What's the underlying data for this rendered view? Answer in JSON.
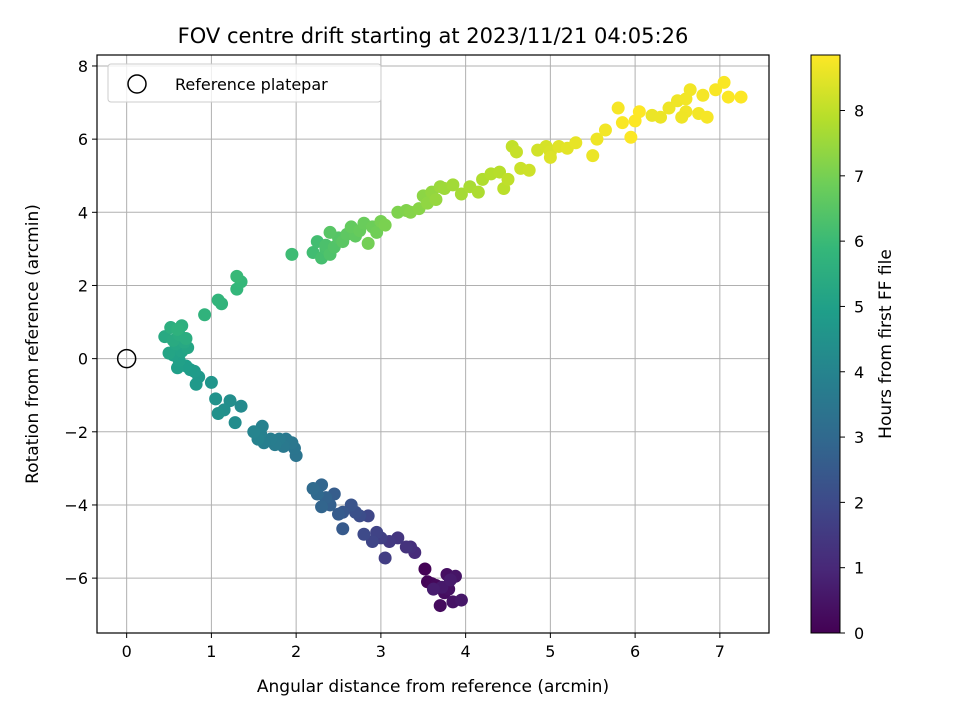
{
  "chart_data": {
    "type": "scatter",
    "title": "FOV centre drift starting at 2023/11/21 04:05:26",
    "xlabel": "Angular distance from reference (arcmin)",
    "ylabel": "Rotation from reference (arcmin)",
    "xlim": [
      -0.35,
      7.58
    ],
    "ylim": [
      -7.5,
      8.3
    ],
    "xticks": [
      0,
      1,
      2,
      3,
      4,
      5,
      6,
      7
    ],
    "yticks": [
      -6,
      -4,
      -2,
      0,
      2,
      4,
      6,
      8
    ],
    "grid": true,
    "legend": {
      "position": "top-left",
      "entries": [
        "Reference platepar"
      ]
    },
    "reference_point": {
      "x": 0,
      "y": 0
    },
    "colorbar": {
      "label": "Hours from first FF file",
      "range": [
        0,
        8.85
      ],
      "ticks": [
        0,
        1,
        2,
        3,
        4,
        5,
        6,
        7,
        8
      ],
      "colormap": "viridis"
    },
    "colormap_stops": [
      "#440154",
      "#482878",
      "#3e4989",
      "#31688e",
      "#26828e",
      "#1f9e89",
      "#35b779",
      "#6ece58",
      "#b5de2b",
      "#fde725"
    ],
    "points": [
      [
        3.52,
        -5.75,
        0.05
      ],
      [
        3.55,
        -6.1,
        0.1
      ],
      [
        3.6,
        -6.15,
        0.15
      ],
      [
        3.65,
        -6.2,
        0.2
      ],
      [
        3.7,
        -6.75,
        0.25
      ],
      [
        3.75,
        -6.4,
        0.3
      ],
      [
        3.78,
        -5.9,
        0.35
      ],
      [
        3.8,
        -6.3,
        0.4
      ],
      [
        3.85,
        -6.65,
        0.45
      ],
      [
        3.88,
        -5.95,
        0.5
      ],
      [
        3.95,
        -6.6,
        0.55
      ],
      [
        3.72,
        -6.25,
        0.6
      ],
      [
        3.82,
        -6.05,
        0.65
      ],
      [
        3.62,
        -6.3,
        0.7
      ],
      [
        3.4,
        -5.3,
        1.1
      ],
      [
        3.35,
        -5.15,
        1.2
      ],
      [
        3.3,
        -5.15,
        1.3
      ],
      [
        3.2,
        -4.9,
        1.4
      ],
      [
        3.1,
        -5.0,
        1.5
      ],
      [
        3.05,
        -5.45,
        1.6
      ],
      [
        3.0,
        -4.9,
        1.7
      ],
      [
        2.95,
        -4.75,
        1.8
      ],
      [
        2.9,
        -5.0,
        1.85
      ],
      [
        2.85,
        -4.3,
        1.9
      ],
      [
        2.8,
        -4.8,
        2.0
      ],
      [
        2.75,
        -4.3,
        2.1
      ],
      [
        2.7,
        -4.2,
        2.2
      ],
      [
        2.65,
        -4.0,
        2.3
      ],
      [
        2.55,
        -4.2,
        2.4
      ],
      [
        2.55,
        -4.65,
        2.5
      ],
      [
        2.5,
        -4.25,
        2.55
      ],
      [
        2.45,
        -3.7,
        2.6
      ],
      [
        2.4,
        -4.0,
        2.7
      ],
      [
        2.35,
        -3.8,
        2.8
      ],
      [
        2.3,
        -4.05,
        2.85
      ],
      [
        2.3,
        -3.45,
        2.9
      ],
      [
        2.25,
        -3.7,
        3.0
      ],
      [
        2.2,
        -3.55,
        3.05
      ],
      [
        2.0,
        -2.65,
        3.4
      ],
      [
        1.98,
        -2.45,
        3.45
      ],
      [
        1.95,
        -2.3,
        3.5
      ],
      [
        1.88,
        -2.2,
        3.55
      ],
      [
        1.85,
        -2.4,
        3.6
      ],
      [
        1.8,
        -2.2,
        3.65
      ],
      [
        1.75,
        -2.35,
        3.7
      ],
      [
        1.7,
        -2.2,
        3.75
      ],
      [
        1.62,
        -2.3,
        3.8
      ],
      [
        1.58,
        -2.05,
        3.85
      ],
      [
        1.6,
        -1.85,
        3.9
      ],
      [
        1.55,
        -2.2,
        3.95
      ],
      [
        1.5,
        -2.0,
        4.0
      ],
      [
        1.35,
        -1.3,
        4.2
      ],
      [
        1.28,
        -1.75,
        4.3
      ],
      [
        1.22,
        -1.15,
        4.35
      ],
      [
        1.15,
        -1.4,
        4.4
      ],
      [
        1.08,
        -1.5,
        4.45
      ],
      [
        1.05,
        -1.1,
        4.5
      ],
      [
        1.0,
        -0.65,
        4.6
      ],
      [
        0.85,
        -0.5,
        4.7
      ],
      [
        0.82,
        -0.7,
        4.75
      ],
      [
        0.8,
        -0.35,
        4.8
      ],
      [
        0.75,
        -0.3,
        4.85
      ],
      [
        0.7,
        -0.2,
        4.9
      ],
      [
        0.6,
        -0.25,
        4.95
      ],
      [
        0.62,
        -0.05,
        5.0
      ],
      [
        0.55,
        0.1,
        5.05
      ],
      [
        0.65,
        0.2,
        5.1
      ],
      [
        0.5,
        0.15,
        5.15
      ],
      [
        0.72,
        0.3,
        5.2
      ],
      [
        0.58,
        0.4,
        5.25
      ],
      [
        0.68,
        0.45,
        5.3
      ],
      [
        0.45,
        0.6,
        5.35
      ],
      [
        0.55,
        0.5,
        5.4
      ],
      [
        0.62,
        0.65,
        5.45
      ],
      [
        0.7,
        0.55,
        5.5
      ],
      [
        0.52,
        0.85,
        5.55
      ],
      [
        0.65,
        0.9,
        5.6
      ],
      [
        0.6,
        0.8,
        5.65
      ],
      [
        0.92,
        1.2,
        5.7
      ],
      [
        1.12,
        1.5,
        5.75
      ],
      [
        1.08,
        1.6,
        5.8
      ],
      [
        1.3,
        1.9,
        5.85
      ],
      [
        1.35,
        2.1,
        5.9
      ],
      [
        1.3,
        2.25,
        5.95
      ],
      [
        1.95,
        2.85,
        6.05
      ],
      [
        2.2,
        2.9,
        6.1
      ],
      [
        2.25,
        3.2,
        6.15
      ],
      [
        2.3,
        2.75,
        6.2
      ],
      [
        2.35,
        3.0,
        6.25
      ],
      [
        2.35,
        3.1,
        6.3
      ],
      [
        2.4,
        2.85,
        6.35
      ],
      [
        2.45,
        3.05,
        6.4
      ],
      [
        2.5,
        3.3,
        6.45
      ],
      [
        2.4,
        3.45,
        6.5
      ],
      [
        2.55,
        3.2,
        6.55
      ],
      [
        2.6,
        3.4,
        6.6
      ],
      [
        2.7,
        3.35,
        6.65
      ],
      [
        2.65,
        3.6,
        6.7
      ],
      [
        2.75,
        3.5,
        6.75
      ],
      [
        2.8,
        3.7,
        6.8
      ],
      [
        2.9,
        3.6,
        6.85
      ],
      [
        2.95,
        3.45,
        6.9
      ],
      [
        2.85,
        3.15,
        6.95
      ],
      [
        3.0,
        3.75,
        7.0
      ],
      [
        3.05,
        3.65,
        7.05
      ],
      [
        3.2,
        4.0,
        7.1
      ],
      [
        3.3,
        4.05,
        7.15
      ],
      [
        3.35,
        4.0,
        7.2
      ],
      [
        3.45,
        4.1,
        7.25
      ],
      [
        3.5,
        4.45,
        7.3
      ],
      [
        3.55,
        4.25,
        7.35
      ],
      [
        3.6,
        4.55,
        7.4
      ],
      [
        3.65,
        4.35,
        7.45
      ],
      [
        3.7,
        4.7,
        7.5
      ],
      [
        3.75,
        4.65,
        7.55
      ],
      [
        3.85,
        4.75,
        7.6
      ],
      [
        3.95,
        4.5,
        7.65
      ],
      [
        4.05,
        4.7,
        7.7
      ],
      [
        4.15,
        4.55,
        7.75
      ],
      [
        4.2,
        4.9,
        7.8
      ],
      [
        4.3,
        5.05,
        7.85
      ],
      [
        4.4,
        5.1,
        7.9
      ],
      [
        4.45,
        4.65,
        7.95
      ],
      [
        4.5,
        4.9,
        8.0
      ],
      [
        4.55,
        5.8,
        8.05
      ],
      [
        4.6,
        5.65,
        8.1
      ],
      [
        4.65,
        5.2,
        8.15
      ],
      [
        4.75,
        5.15,
        8.2
      ],
      [
        4.85,
        5.7,
        8.25
      ],
      [
        4.95,
        5.8,
        8.3
      ],
      [
        5.0,
        5.65,
        8.35
      ],
      [
        5.0,
        5.5,
        8.4
      ],
      [
        5.1,
        5.8,
        8.45
      ],
      [
        5.2,
        5.75,
        8.5
      ],
      [
        5.3,
        5.9,
        8.55
      ],
      [
        5.5,
        5.55,
        8.6
      ],
      [
        5.55,
        6.0,
        8.65
      ],
      [
        5.65,
        6.25,
        8.7
      ],
      [
        5.8,
        6.85,
        8.75
      ],
      [
        5.85,
        6.45,
        8.8
      ],
      [
        5.95,
        6.05,
        8.82
      ],
      [
        6.0,
        6.5,
        8.84
      ],
      [
        6.05,
        6.75,
        8.85
      ]
    ],
    "points_tail": [
      [
        6.2,
        6.65,
        8.6
      ],
      [
        6.3,
        6.6,
        8.62
      ],
      [
        6.4,
        6.85,
        8.64
      ],
      [
        6.5,
        7.05,
        8.66
      ],
      [
        6.6,
        6.75,
        8.68
      ],
      [
        6.65,
        7.35,
        8.7
      ],
      [
        6.75,
        6.7,
        8.72
      ],
      [
        6.8,
        7.2,
        8.74
      ],
      [
        6.85,
        6.6,
        8.76
      ],
      [
        6.95,
        7.35,
        8.78
      ],
      [
        7.05,
        7.55,
        8.8
      ],
      [
        7.1,
        7.15,
        8.82
      ],
      [
        7.25,
        7.15,
        8.84
      ],
      [
        6.6,
        7.1,
        8.7
      ],
      [
        6.55,
        6.6,
        8.66
      ]
    ]
  }
}
